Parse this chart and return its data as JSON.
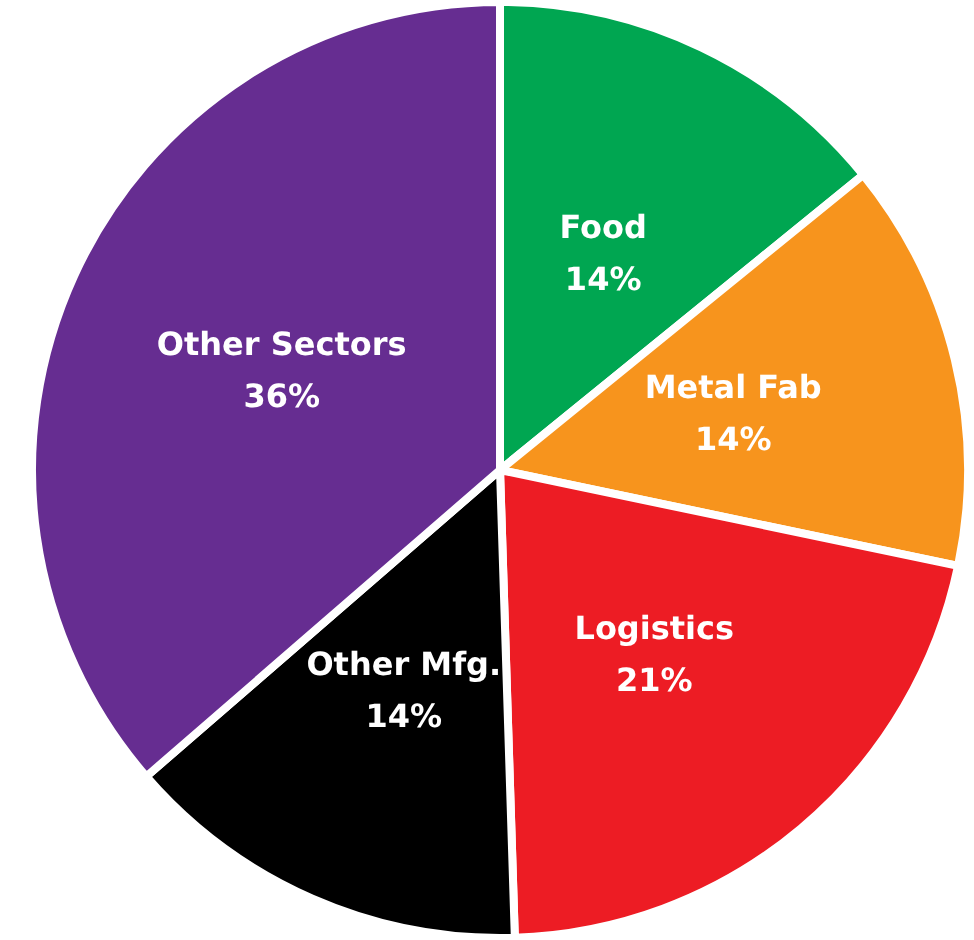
{
  "chart_data": {
    "type": "pie",
    "categories": [
      "Food",
      "Metal Fab",
      "Logistics",
      "Other Mfg.",
      "Other Sectors"
    ],
    "values": [
      14,
      14,
      21,
      14,
      36
    ],
    "colors": [
      "#00a651",
      "#f7941d",
      "#ed1c24",
      "#000000",
      "#662d91"
    ],
    "value_labels": [
      "14%",
      "14%",
      "21%",
      "14%",
      "36%"
    ],
    "legend": false
  }
}
